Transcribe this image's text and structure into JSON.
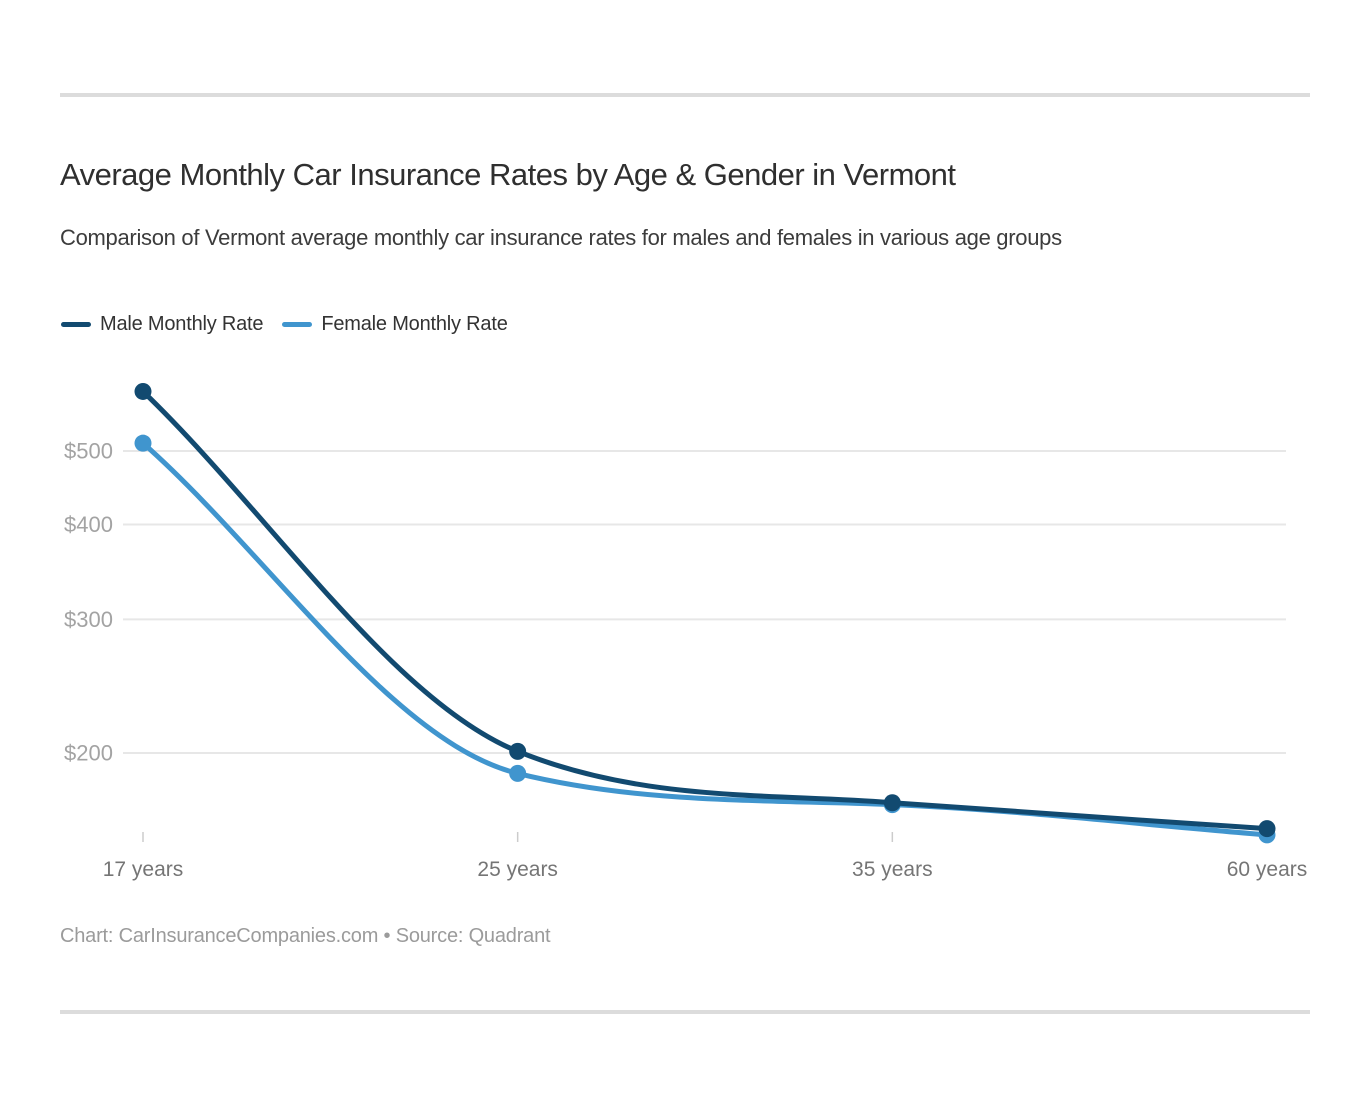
{
  "header": {
    "title": "Average Monthly Car Insurance Rates by Age & Gender in Vermont",
    "subtitle": "Comparison of Vermont average monthly car insurance rates for males and females in various age groups"
  },
  "legend": {
    "position": "top-left",
    "items": [
      {
        "label": "Male Monthly Rate",
        "color": "#124a70"
      },
      {
        "label": "Female Monthly Rate",
        "color": "#4095ce"
      }
    ]
  },
  "chart_data": {
    "type": "line",
    "title": "Average Monthly Car Insurance Rates by Age & Gender in Vermont",
    "subtitle": "Comparison of Vermont average monthly car insurance rates for males and females in various age groups",
    "categories": [
      "17 years",
      "25 years",
      "35 years",
      "60 years"
    ],
    "series": [
      {
        "name": "Male Monthly Rate",
        "color": "#124a70",
        "values": [
          599,
          201,
          172,
          159
        ]
      },
      {
        "name": "Female Monthly Rate",
        "color": "#4095ce",
        "values": [
          512,
          188,
          171,
          156
        ]
      }
    ],
    "xlabel": "",
    "ylabel": "",
    "curve": "monotone",
    "marker": "circle",
    "legend_position": "top-left",
    "y_axis": {
      "scale": "log",
      "ticks": [
        200,
        300,
        400,
        500
      ],
      "tick_labels": [
        "$200",
        "$300",
        "$400",
        "$500"
      ],
      "tick_prefix": "$",
      "gridlines": true,
      "gridline_color": "#e7e7e7",
      "label_color": "#a3a3a3"
    },
    "x_axis": {
      "tick_color": "#cccccc",
      "label_color": "#757575"
    }
  },
  "footer": {
    "text": "Chart: CarInsuranceCompanies.com • Source: Quadrant"
  },
  "colors": {
    "background": "#ffffff",
    "divider": "#dcdcdc",
    "title": "#2f2f2f",
    "subtitle": "#3c3c3c",
    "legend_text": "#333333",
    "footer_text": "#9b9b9b"
  }
}
